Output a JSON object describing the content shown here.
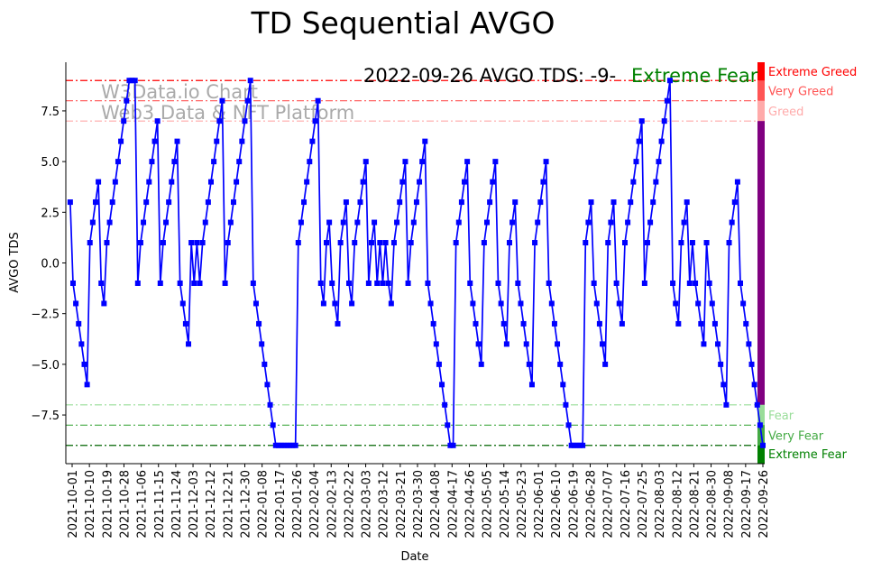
{
  "chart_data": {
    "type": "line",
    "title": "TD Sequential AVGO",
    "subtitle": "2022-09-26 AVGO TDS: -9-",
    "status_label": "Extreme Fear",
    "watermark": [
      "W3Data.io Chart",
      "Web3 Data & NFT Platform"
    ],
    "xlabel": "Date",
    "ylabel": "AVGO TDS",
    "ylim": [
      -9.9,
      9.9
    ],
    "x_start": "2021-09-30",
    "x_end": "2022-09-26",
    "xtick_labels": [
      "2021-10-01",
      "2021-10-10",
      "2021-10-19",
      "2021-10-28",
      "2021-11-06",
      "2021-11-15",
      "2021-11-24",
      "2021-12-03",
      "2021-12-12",
      "2021-12-21",
      "2021-12-30",
      "2022-01-08",
      "2022-01-17",
      "2022-01-26",
      "2022-02-04",
      "2022-02-13",
      "2022-02-22",
      "2022-03-03",
      "2022-03-12",
      "2022-03-21",
      "2022-03-30",
      "2022-04-08",
      "2022-04-17",
      "2022-04-26",
      "2022-05-05",
      "2022-05-14",
      "2022-05-23",
      "2022-06-01",
      "2022-06-10",
      "2022-06-19",
      "2022-06-28",
      "2022-07-07",
      "2022-07-16",
      "2022-07-25",
      "2022-08-03",
      "2022-08-12",
      "2022-08-21",
      "2022-08-30",
      "2022-09-08",
      "2022-09-17",
      "2022-09-26"
    ],
    "ytick_values": [
      -7.5,
      -5.0,
      -2.5,
      0.0,
      2.5,
      5.0,
      7.5
    ],
    "ytick_labels": [
      "−7.5",
      "−5.0",
      "−2.5",
      "0.0",
      "2.5",
      "5.0",
      "7.5"
    ],
    "series": [
      {
        "name": "AVGO TDS",
        "color": "#0000ff",
        "values": [
          3,
          -1,
          -2,
          -3,
          -4,
          -5,
          -6,
          1,
          2,
          3,
          4,
          -1,
          -2,
          1,
          2,
          3,
          4,
          5,
          6,
          7,
          8,
          9,
          9,
          9,
          -1,
          1,
          2,
          3,
          4,
          5,
          6,
          7,
          -1,
          1,
          2,
          3,
          4,
          5,
          6,
          -1,
          -2,
          -3,
          -4,
          1,
          -1,
          1,
          -1,
          1,
          2,
          3,
          4,
          5,
          6,
          7,
          8,
          -1,
          1,
          2,
          3,
          4,
          5,
          6,
          7,
          8,
          9,
          -1,
          -2,
          -3,
          -4,
          -5,
          -6,
          -7,
          -8,
          -9,
          -9,
          -9,
          -9,
          -9,
          -9,
          -9,
          -9,
          1,
          2,
          3,
          4,
          5,
          6,
          7,
          8,
          -1,
          -2,
          1,
          2,
          -1,
          -2,
          -3,
          1,
          2,
          3,
          -1,
          -2,
          1,
          2,
          3,
          4,
          5,
          -1,
          1,
          2,
          -1,
          1,
          -1,
          1,
          -1,
          -2,
          1,
          2,
          3,
          4,
          5,
          -1,
          1,
          2,
          3,
          4,
          5,
          6,
          -1,
          -2,
          -3,
          -4,
          -5,
          -6,
          -7,
          -8,
          -9,
          -9,
          1,
          2,
          3,
          4,
          5,
          -1,
          -2,
          -3,
          -4,
          -5,
          1,
          2,
          3,
          4,
          5,
          -1,
          -2,
          -3,
          -4,
          1,
          2,
          3,
          -1,
          -2,
          -3,
          -4,
          -5,
          -6,
          1,
          2,
          3,
          4,
          5,
          -1,
          -2,
          -3,
          -4,
          -5,
          -6,
          -7,
          -8,
          -9,
          -9,
          -9,
          -9,
          -9,
          1,
          2,
          3,
          -1,
          -2,
          -3,
          -4,
          -5,
          1,
          2,
          3,
          -1,
          -2,
          -3,
          1,
          2,
          3,
          4,
          5,
          6,
          7,
          -1,
          1,
          2,
          3,
          4,
          5,
          6,
          7,
          8,
          9,
          -1,
          -2,
          -3,
          1,
          2,
          3,
          -1,
          1,
          -1,
          -2,
          -3,
          -4,
          1,
          -1,
          -2,
          -3,
          -4,
          -5,
          -6,
          -7,
          1,
          2,
          3,
          4,
          -1,
          -2,
          -3,
          -4,
          -5,
          -6,
          -7,
          -8,
          -9
        ]
      }
    ],
    "reference_lines": [
      {
        "value": 9,
        "color": "#ff0000"
      },
      {
        "value": 8,
        "color": "#ff5555"
      },
      {
        "value": 7,
        "color": "#ffaaaa"
      },
      {
        "value": -7,
        "color": "#99dd99"
      },
      {
        "value": -8,
        "color": "#44aa44"
      },
      {
        "value": -9,
        "color": "#006400"
      }
    ],
    "zones": [
      {
        "label": "Extreme Greed",
        "from": 9,
        "to": 9.9,
        "color": "#ff0000"
      },
      {
        "label": "Very Greed",
        "from": 8,
        "to": 9,
        "color": "#ff5555"
      },
      {
        "label": "Greed",
        "from": 7,
        "to": 8,
        "color": "#ffaaaa"
      },
      {
        "label": "",
        "from": -7,
        "to": 7,
        "color": "#800080"
      },
      {
        "label": "Fear",
        "from": -8,
        "to": -7,
        "color": "#99dd99"
      },
      {
        "label": "Very Fear",
        "from": -9,
        "to": -8,
        "color": "#44aa44"
      },
      {
        "label": "Extreme Fear",
        "from": -9.9,
        "to": -9,
        "color": "#008000"
      }
    ]
  }
}
